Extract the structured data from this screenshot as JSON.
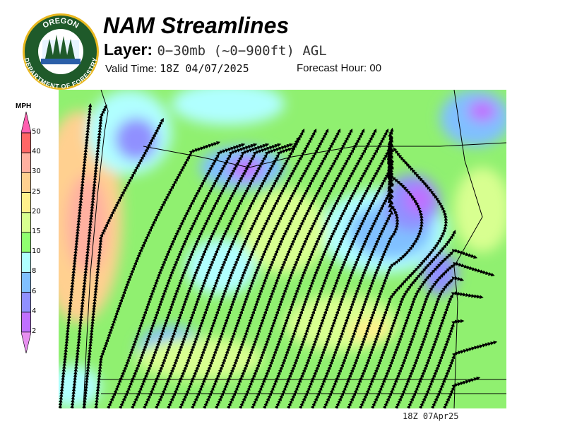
{
  "header": {
    "title": "NAM Streamlines",
    "layer_label": "Layer:",
    "layer_value": "0−30mb (~0−900ft) AGL",
    "valid_label": "Valid Time:",
    "valid_value": "18Z 04/07/2025",
    "forecast_label": "Forecast Hour:",
    "forecast_value": "00"
  },
  "logo": {
    "top_text": "OREGON",
    "bottom_text": "DEPARTMENT OF FORESTRY",
    "ring_color": "#1f5a2a",
    "gold": "#e8b820"
  },
  "legend": {
    "units": "MPH",
    "ticks": [
      "50",
      "40",
      "30",
      "25",
      "20",
      "15",
      "10",
      "8",
      "6",
      "4",
      "2"
    ],
    "colors": [
      "#ff6666",
      "#ffb0a0",
      "#ffd090",
      "#fff08c",
      "#d8ff90",
      "#90ff70",
      "#b0ffff",
      "#80c0ff",
      "#9090ff",
      "#c070ff"
    ],
    "over_color": "#ff5fb0",
    "under_color": "#e890f0"
  },
  "footer": {
    "stamp": "18Z 07Apr25"
  }
}
